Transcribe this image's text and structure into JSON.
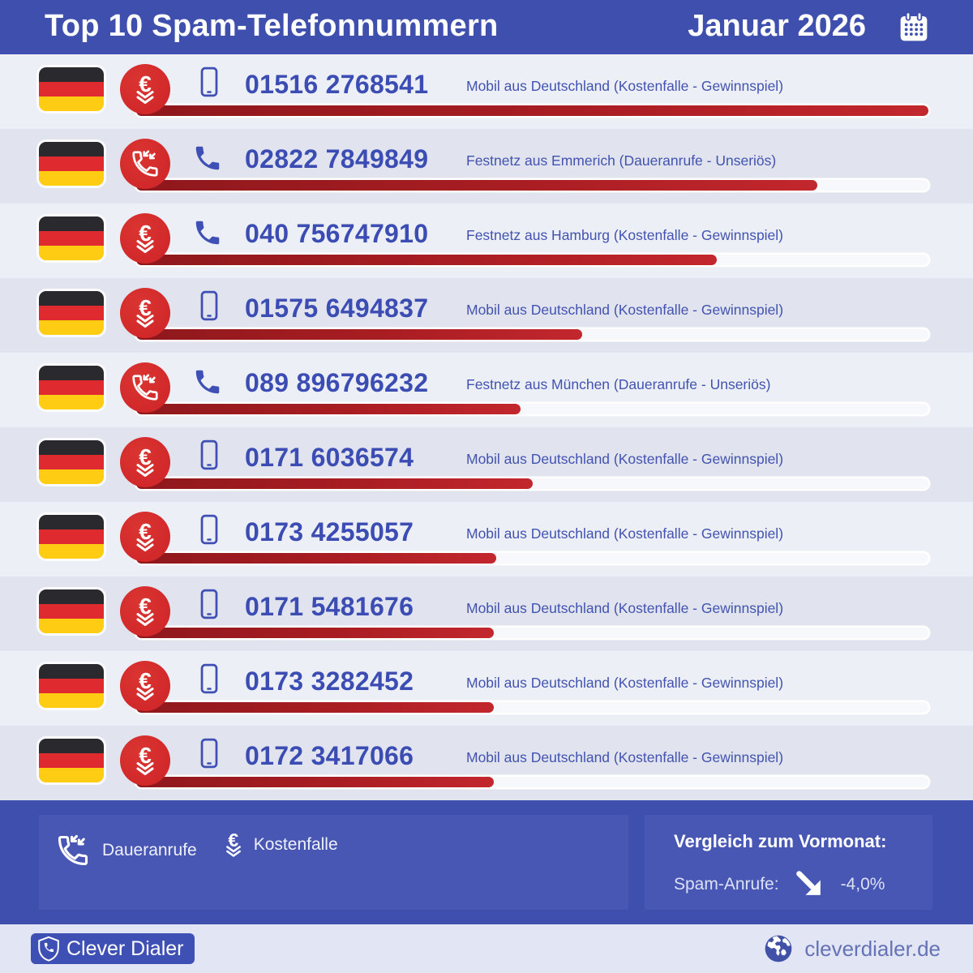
{
  "header": {
    "title": "Top 10 Spam-Telefonnummern",
    "period": "Januar 2026",
    "icon": "calendar-icon"
  },
  "icons": {
    "euro_glyph": "€"
  },
  "rows": [
    {
      "number": "01516 2768541",
      "description": "Mobil aus Deutschland (Kostenfalle - Gewinnspiel)",
      "category": "kostenfalle",
      "type": "mobile",
      "bar_percent": 100
    },
    {
      "number": "02822 7849849",
      "description": "Festnetz aus Emmerich (Daueranrufe - Unseriös)",
      "category": "daueranrufe",
      "type": "landline",
      "bar_percent": 86
    },
    {
      "number": "040 756747910",
      "description": "Festnetz aus Hamburg (Kostenfalle - Gewinnspiel)",
      "category": "kostenfalle",
      "type": "landline",
      "bar_percent": 73.3
    },
    {
      "number": "01575 6494837",
      "description": "Mobil aus Deutschland (Kostenfalle - Gewinnspiel)",
      "category": "kostenfalle",
      "type": "mobile",
      "bar_percent": 56.3
    },
    {
      "number": "089 896796232",
      "description": "Festnetz aus München (Daueranrufe - Unseriös)",
      "category": "daueranrufe",
      "type": "landline",
      "bar_percent": 48.5
    },
    {
      "number": "0171 6036574",
      "description": "Mobil aus Deutschland (Kostenfalle - Gewinnspiel)",
      "category": "kostenfalle",
      "type": "mobile",
      "bar_percent": 50
    },
    {
      "number": "0173 4255057",
      "description": "Mobil aus Deutschland (Kostenfalle - Gewinnspiel)",
      "category": "kostenfalle",
      "type": "mobile",
      "bar_percent": 45.4
    },
    {
      "number": "0171 5481676",
      "description": "Mobil aus Deutschland (Kostenfalle - Gewinnspiel)",
      "category": "kostenfalle",
      "type": "mobile",
      "bar_percent": 45.1
    },
    {
      "number": "0173 3282452",
      "description": "Mobil aus Deutschland (Kostenfalle - Gewinnspiel)",
      "category": "kostenfalle",
      "type": "mobile",
      "bar_percent": 45.1
    },
    {
      "number": "0172 3417066",
      "description": "Mobil aus Deutschland (Kostenfalle - Gewinnspiel)",
      "category": "kostenfalle",
      "type": "mobile",
      "bar_percent": 45.1
    }
  ],
  "legend": {
    "items": [
      {
        "icon": "incoming-call-icon",
        "label": "Daueranrufe"
      },
      {
        "icon": "euro-trap-icon",
        "label": "Kostenfalle"
      }
    ]
  },
  "comparison": {
    "title": "Vergleich zum Vormonat:",
    "label": "Spam-Anrufe:",
    "icon": "arrow-down-right-icon",
    "value": "-4,0%"
  },
  "footer": {
    "brand": "Clever Dialer",
    "brand_icon": "shield-phone-icon",
    "website": "cleverdialer.de",
    "website_icon": "globe-icon"
  },
  "colors": {
    "header_bg": "#3E4FAD",
    "panel_bg": "#4857B4",
    "row_bg_light": "#EDEFF7",
    "row_bg_dark": "#E1E4EE",
    "accent_blue": "#3B4DB3",
    "bar_fill_dark": "#8E181C",
    "bar_fill_bright": "#C2272D",
    "bar_track": "#F7F8FC",
    "badge_red": "#CE2328",
    "flag_black": "#2A2A2E",
    "flag_red": "#DF2B2F",
    "flag_gold": "#FFCC14",
    "footer_strip_bg": "#E2E5F4",
    "website_text": "#6472B6"
  },
  "chart_data": {
    "type": "bar",
    "orientation": "horizontal",
    "title": "Top 10 Spam-Telefonnummern",
    "subtitle": "Januar 2026",
    "categories": [
      "01516 2768541",
      "02822 7849849",
      "040 756747910",
      "01575 6494837",
      "089 896796232",
      "0171 6036574",
      "0173 4255057",
      "0171 5481676",
      "0173 3282452",
      "0172 3417066"
    ],
    "values": [
      100,
      86,
      73.3,
      56.3,
      48.5,
      50,
      45.4,
      45.1,
      45.1,
      45.1
    ],
    "value_note": "relative bar length in percent of track; no numeric labels shown in image",
    "annotations": [
      "Mobil aus Deutschland (Kostenfalle - Gewinnspiel)",
      "Festnetz aus Emmerich (Daueranrufe - Unseriös)",
      "Festnetz aus Hamburg (Kostenfalle - Gewinnspiel)",
      "Mobil aus Deutschland (Kostenfalle - Gewinnspiel)",
      "Festnetz aus München (Daueranrufe - Unseriös)",
      "Mobil aus Deutschland (Kostenfalle - Gewinnspiel)",
      "Mobil aus Deutschland (Kostenfalle - Gewinnspiel)",
      "Mobil aus Deutschland (Kostenfalle - Gewinnspiel)",
      "Mobil aus Deutschland (Kostenfalle - Gewinnspiel)",
      "Mobil aus Deutschland (Kostenfalle - Gewinnspiel)"
    ],
    "bar_color": "#B2222A",
    "grid": false,
    "legend_position": "bottom"
  }
}
